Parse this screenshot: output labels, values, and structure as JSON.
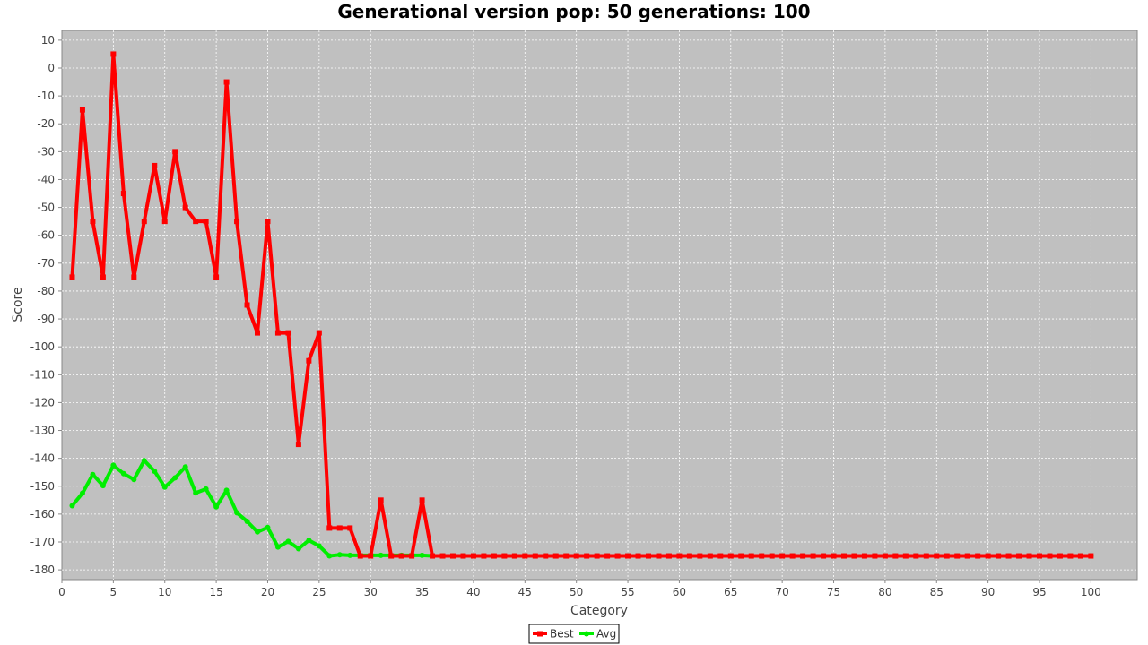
{
  "colors": {
    "plot_background": "#c0c0c0",
    "gridline": "#ffffff",
    "best": "#ff0000",
    "avg": "#00ee00",
    "axis": "#888888"
  },
  "chart_data": {
    "type": "line",
    "title": "Generational version pop: 50 generations: 100",
    "xlabel": "Category",
    "ylabel": "Score",
    "xlim": [
      0,
      104.5
    ],
    "ylim": [
      -183.5,
      13.5
    ],
    "x_ticks": [
      0,
      5,
      10,
      15,
      20,
      25,
      30,
      35,
      40,
      45,
      50,
      55,
      60,
      65,
      70,
      75,
      80,
      85,
      90,
      95,
      100
    ],
    "y_ticks": [
      10,
      0,
      -10,
      -20,
      -30,
      -40,
      -50,
      -60,
      -70,
      -80,
      -90,
      -100,
      -110,
      -120,
      -130,
      -140,
      -150,
      -160,
      -170,
      -180
    ],
    "grid": true,
    "legend_position": "bottom-center",
    "categories": [
      1,
      2,
      3,
      4,
      5,
      6,
      7,
      8,
      9,
      10,
      11,
      12,
      13,
      14,
      15,
      16,
      17,
      18,
      19,
      20,
      21,
      22,
      23,
      24,
      25,
      26,
      27,
      28,
      29,
      30,
      31,
      32,
      33,
      34,
      35,
      36,
      37,
      38,
      39,
      40,
      41,
      42,
      43,
      44,
      45,
      46,
      47,
      48,
      49,
      50,
      51,
      52,
      53,
      54,
      55,
      56,
      57,
      58,
      59,
      60,
      61,
      62,
      63,
      64,
      65,
      66,
      67,
      68,
      69,
      70,
      71,
      72,
      73,
      74,
      75,
      76,
      77,
      78,
      79,
      80,
      81,
      82,
      83,
      84,
      85,
      86,
      87,
      88,
      89,
      90,
      91,
      92,
      93,
      94,
      95,
      96,
      97,
      98,
      99,
      100
    ],
    "series": [
      {
        "name": "Best",
        "color": "#ff0000",
        "marker": "square",
        "values": [
          -75,
          -15,
          -55,
          -75,
          5,
          -45,
          -75,
          -55,
          -35,
          -55,
          -30,
          -50,
          -55,
          -55,
          -75,
          -5,
          -55,
          -85,
          -95,
          -55,
          -95,
          -95,
          -135,
          -105,
          -95,
          -165,
          -165,
          -165,
          -175,
          -175,
          -155,
          -175,
          -175,
          -175,
          -155,
          -175,
          -175,
          -175,
          -175,
          -175,
          -175,
          -175,
          -175,
          -175,
          -175,
          -175,
          -175,
          -175,
          -175,
          -175,
          -175,
          -175,
          -175,
          -175,
          -175,
          -175,
          -175,
          -175,
          -175,
          -175,
          -175,
          -175,
          -175,
          -175,
          -175,
          -175,
          -175,
          -175,
          -175,
          -175,
          -175,
          -175,
          -175,
          -175,
          -175,
          -175,
          -175,
          -175,
          -175,
          -175,
          -175,
          -175,
          -175,
          -175,
          -175,
          -175,
          -175,
          -175,
          -175,
          -175,
          -175,
          -175,
          -175,
          -175,
          -175,
          -175,
          -175,
          -175,
          -175,
          -175
        ]
      },
      {
        "name": "Avg",
        "color": "#00ee00",
        "marker": "circle",
        "values": [
          -157,
          -152.5,
          -145.8,
          -149.8,
          -142.5,
          -145.5,
          -147.6,
          -140.8,
          -144.6,
          -150.3,
          -147,
          -143.1,
          -152.4,
          -151,
          -157.4,
          -151.5,
          -159.5,
          -162.6,
          -166.4,
          -164.8,
          -171.8,
          -169.8,
          -172.4,
          -169.4,
          -171.4,
          -175,
          -174.6,
          -174.8,
          -174.8,
          -174.8,
          -174.8,
          -174.8,
          -174.8,
          -174.8,
          -174.8,
          -175,
          -175,
          -175,
          -175,
          -175,
          -175,
          -175,
          -175,
          -175,
          -175,
          -175,
          -175,
          -175,
          -175,
          -175,
          -175,
          -175,
          -175,
          -175,
          -175,
          -175,
          -175,
          -175,
          -175,
          -175,
          -175,
          -175,
          -175,
          -175,
          -175,
          -175,
          -175,
          -175,
          -175,
          -175,
          -175,
          -175,
          -175,
          -175,
          -175,
          -175,
          -175,
          -175,
          -175,
          -175,
          -175,
          -175,
          -175,
          -175,
          -175,
          -175,
          -175,
          -175,
          -175,
          -175,
          -175,
          -175,
          -175,
          -175,
          -175,
          -175,
          -175,
          -175,
          -175,
          -175
        ]
      }
    ]
  }
}
